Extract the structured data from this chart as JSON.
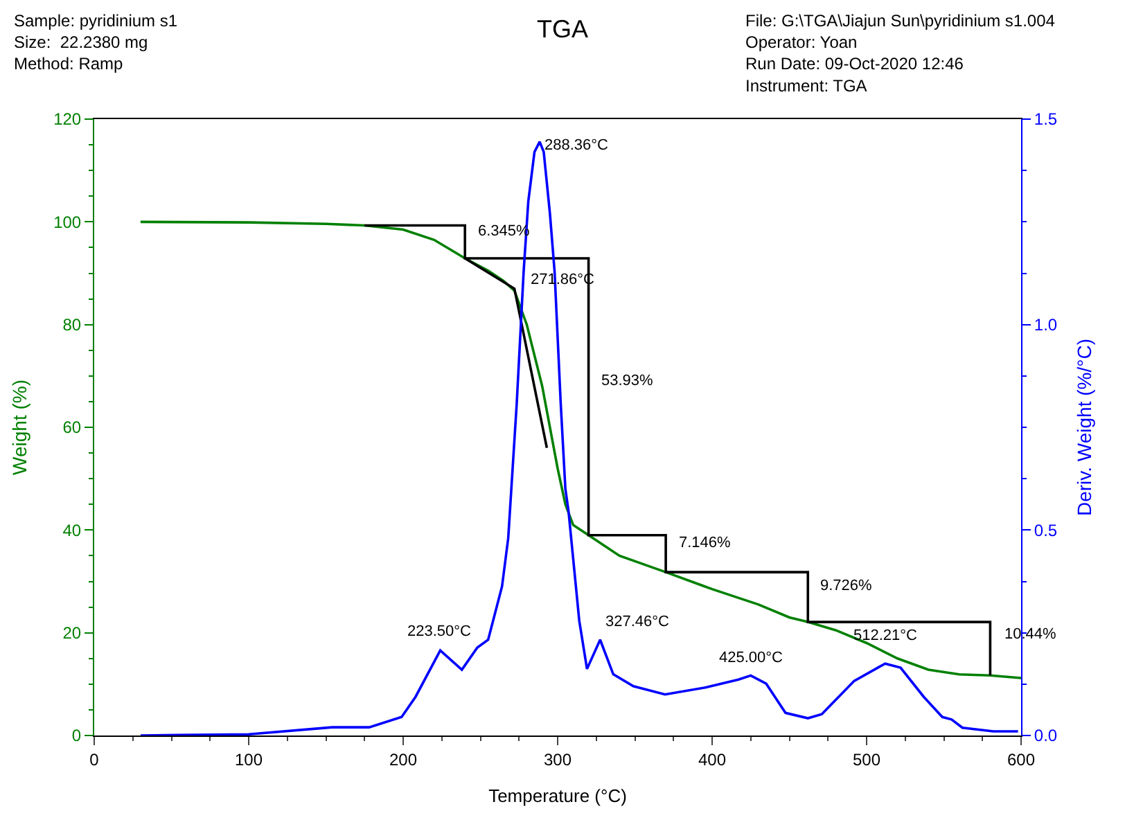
{
  "chart_data": {
    "type": "line",
    "title": "TGA",
    "xlabel": "Temperature (°C)",
    "ylabel": "Weight (%)",
    "y2label": "Deriv. Weight (%/°C)",
    "xlim": [
      0,
      600
    ],
    "xticks": [
      0,
      100,
      200,
      300,
      400,
      500,
      600
    ],
    "ylim": [
      0,
      120
    ],
    "yticks": [
      0,
      20,
      40,
      60,
      80,
      100,
      120
    ],
    "y2lim": [
      0,
      1.5
    ],
    "y2ticks": [
      {
        "value": 0,
        "label": "0.0"
      },
      {
        "value": 0.5,
        "label": "0.5"
      },
      {
        "value": 1.0,
        "label": "1.0"
      },
      {
        "value": 1.5,
        "label": "1.5"
      }
    ],
    "marker": "none",
    "line_style": "solid",
    "series": [
      {
        "color": "#008000",
        "x": [
          30,
          100,
          150,
          175,
          200,
          220,
          235,
          240,
          255,
          265,
          272,
          280,
          290,
          300,
          305,
          310,
          320,
          340,
          370,
          400,
          430,
          450,
          462,
          480,
          500,
          520,
          540,
          560,
          580,
          600
        ],
        "values": [
          100,
          99.9,
          99.6,
          99.3,
          98.5,
          96.5,
          93.8,
          92.9,
          90.5,
          88.5,
          86.6,
          80,
          68,
          52,
          45,
          41,
          39.0,
          35,
          31.8,
          28.5,
          25.5,
          23,
          22.1,
          20.5,
          18,
          15,
          12.8,
          11.9,
          11.7,
          11.2
        ]
      },
      {
        "color": "#0000ff",
        "axis": "y2",
        "x": [
          30,
          100,
          154,
          178,
          199,
          208,
          224,
          238,
          248,
          255,
          264,
          268,
          273.5,
          278,
          281,
          285,
          288.36,
          291,
          295,
          298,
          302,
          305,
          307,
          314,
          319,
          327.5,
          336,
          349,
          369.5,
          396,
          417,
          425,
          435,
          447.5,
          462,
          471,
          492,
          512,
          522,
          537,
          549,
          555,
          562,
          582,
          598
        ],
        "values": [
          0,
          0.003,
          0.02,
          0.02,
          0.045,
          0.094,
          0.207,
          0.16,
          0.214,
          0.233,
          0.363,
          0.48,
          0.807,
          1.13,
          1.3,
          1.42,
          1.445,
          1.42,
          1.27,
          1.13,
          0.807,
          0.6,
          0.547,
          0.279,
          0.162,
          0.233,
          0.149,
          0.12,
          0.1,
          0.117,
          0.136,
          0.146,
          0.126,
          0.055,
          0.042,
          0.052,
          0.133,
          0.175,
          0.165,
          0.094,
          0.045,
          0.039,
          0.019,
          0.01,
          0.01
        ]
      },
      {
        "color": "#000000",
        "type": "line",
        "x": [
          175,
          240,
          240,
          240,
          320,
          320,
          320,
          370,
          370,
          370,
          462,
          462,
          462,
          580,
          580
        ],
        "values": [
          99.3,
          99.3,
          92.9,
          92.9,
          92.9,
          39.0,
          39.0,
          39.0,
          31.8,
          31.8,
          31.8,
          22.1,
          22.1,
          22.1,
          11.7
        ]
      },
      {
        "color": "#000000",
        "type": "line",
        "x": [
          240,
          272,
          293
        ],
        "values": [
          92.9,
          87,
          56
        ]
      }
    ],
    "annotations": [
      "Sample: pyridinium s1\nSize:  22.2380 mg\nMethod: Ramp",
      "File: G:\\TGA\\Jiajun Sun\\pyridinium s1.004\nOperator: Yoan\nRun Date: 09-Oct-2020 12:46\nInstrument: TGA",
      {
        "text": "6.345%",
        "x": 240,
        "y": 96
      },
      {
        "text": "53.93%",
        "x": 320,
        "y": 67
      },
      {
        "text": "7.146%",
        "x": 370,
        "y": 35.4
      },
      {
        "text": "9.726%",
        "x": 462,
        "y": 27
      },
      {
        "text": "10.44%",
        "x": 581,
        "y": 17.5
      },
      {
        "text": "271.86°C",
        "x": 274,
        "y": 86.6
      },
      "288.36°C",
      "223.50°C",
      "327.46°C",
      "425.00°C",
      "512.21°C"
    ]
  }
}
